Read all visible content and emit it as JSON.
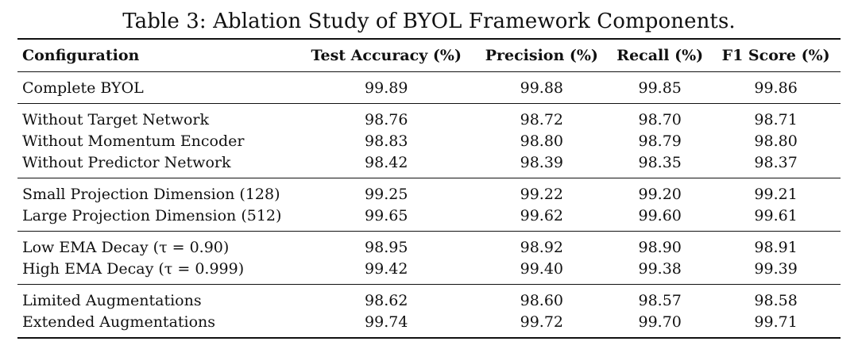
{
  "caption": "Table 3: Ablation Study of BYOL Framework Components.",
  "headers": [
    "Configuration",
    "Test Accuracy (%)",
    "Precision (%)",
    "Recall (%)",
    "F1 Score (%)"
  ],
  "groups": [
    [
      {
        "config": "Complete BYOL",
        "acc": "99.89",
        "prec": "99.88",
        "rec": "99.85",
        "f1": "99.86"
      }
    ],
    [
      {
        "config": "Without Target Network",
        "acc": "98.76",
        "prec": "98.72",
        "rec": "98.70",
        "f1": "98.71"
      },
      {
        "config": "Without Momentum Encoder",
        "acc": "98.83",
        "prec": "98.80",
        "rec": "98.79",
        "f1": "98.80"
      },
      {
        "config": "Without Predictor Network",
        "acc": "98.42",
        "prec": "98.39",
        "rec": "98.35",
        "f1": "98.37"
      }
    ],
    [
      {
        "config": "Small Projection Dimension (128)",
        "acc": "99.25",
        "prec": "99.22",
        "rec": "99.20",
        "f1": "99.21"
      },
      {
        "config": "Large Projection Dimension (512)",
        "acc": "99.65",
        "prec": "99.62",
        "rec": "99.60",
        "f1": "99.61"
      }
    ],
    [
      {
        "config": "Low EMA Decay (τ = 0.90)",
        "acc": "98.95",
        "prec": "98.92",
        "rec": "98.90",
        "f1": "98.91"
      },
      {
        "config": "High EMA Decay (τ = 0.999)",
        "acc": "99.42",
        "prec": "99.40",
        "rec": "99.38",
        "f1": "99.39"
      }
    ],
    [
      {
        "config": "Limited Augmentations",
        "acc": "98.62",
        "prec": "98.60",
        "rec": "98.57",
        "f1": "98.58"
      },
      {
        "config": "Extended Augmentations",
        "acc": "99.74",
        "prec": "99.72",
        "rec": "99.70",
        "f1": "99.71"
      }
    ]
  ]
}
